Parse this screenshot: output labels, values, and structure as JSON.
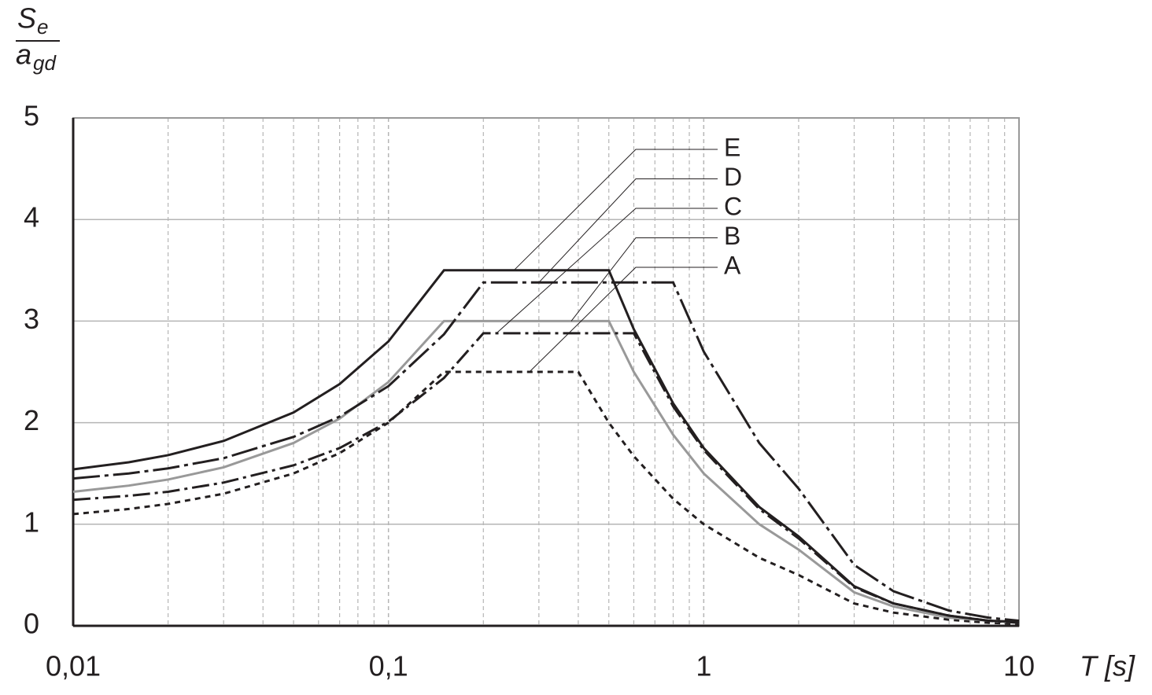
{
  "chart_data": {
    "type": "line",
    "x_scale": "log",
    "y_label": {
      "numerator": "S",
      "numerator_sub": "e",
      "denominator": "a",
      "denominator_sub": "gd"
    },
    "x_label": "T [s]",
    "xlim": [
      0.01,
      10
    ],
    "xticks": [
      {
        "value": 0.01,
        "label": "0,01"
      },
      {
        "value": 0.1,
        "label": "0,1"
      },
      1,
      10
    ],
    "ylim": [
      0,
      5
    ],
    "yticks": [
      0,
      1,
      2,
      3,
      4,
      5
    ],
    "grid": true,
    "x": [
      0.01,
      0.015,
      0.02,
      0.03,
      0.05,
      0.07,
      0.1,
      0.15,
      0.2,
      0.3,
      0.4,
      0.5,
      0.6,
      0.8,
      1,
      1.5,
      2,
      3,
      4,
      6,
      8,
      10
    ],
    "series": [
      {
        "name": "A",
        "color": "#231f20",
        "dash": "7 6",
        "values": [
          1.1,
          1.15,
          1.2,
          1.3,
          1.5,
          1.7,
          2.0,
          2.5,
          2.5,
          2.5,
          2.5,
          2.0,
          1.67,
          1.25,
          1.0,
          0.67,
          0.5,
          0.22,
          0.13,
          0.06,
          0.03,
          0.02
        ]
      },
      {
        "name": "B",
        "color": "#999999",
        "dash": "none",
        "values": [
          1.32,
          1.38,
          1.44,
          1.56,
          1.8,
          2.04,
          2.4,
          3.0,
          3.0,
          3.0,
          3.0,
          3.0,
          2.5,
          1.88,
          1.5,
          1.0,
          0.75,
          0.33,
          0.19,
          0.08,
          0.05,
          0.03
        ]
      },
      {
        "name": "C",
        "color": "#231f20",
        "dash": "22 6 4 6",
        "values": [
          1.24,
          1.28,
          1.32,
          1.41,
          1.58,
          1.75,
          2.01,
          2.44,
          2.88,
          2.88,
          2.88,
          2.88,
          2.88,
          2.16,
          1.73,
          1.15,
          0.86,
          0.38,
          0.22,
          0.1,
          0.05,
          0.03
        ]
      },
      {
        "name": "D",
        "color": "#231f20",
        "dash": "34 6 5 6",
        "values": [
          1.45,
          1.5,
          1.55,
          1.65,
          1.86,
          2.06,
          2.36,
          2.87,
          3.38,
          3.38,
          3.38,
          3.38,
          3.38,
          3.38,
          2.7,
          1.8,
          1.35,
          0.6,
          0.34,
          0.15,
          0.08,
          0.05
        ]
      },
      {
        "name": "E",
        "color": "#231f20",
        "dash": "none",
        "values": [
          1.54,
          1.61,
          1.68,
          1.82,
          2.1,
          2.38,
          2.8,
          3.5,
          3.5,
          3.5,
          3.5,
          3.5,
          2.92,
          2.19,
          1.75,
          1.17,
          0.88,
          0.39,
          0.22,
          0.1,
          0.05,
          0.04
        ]
      }
    ]
  }
}
